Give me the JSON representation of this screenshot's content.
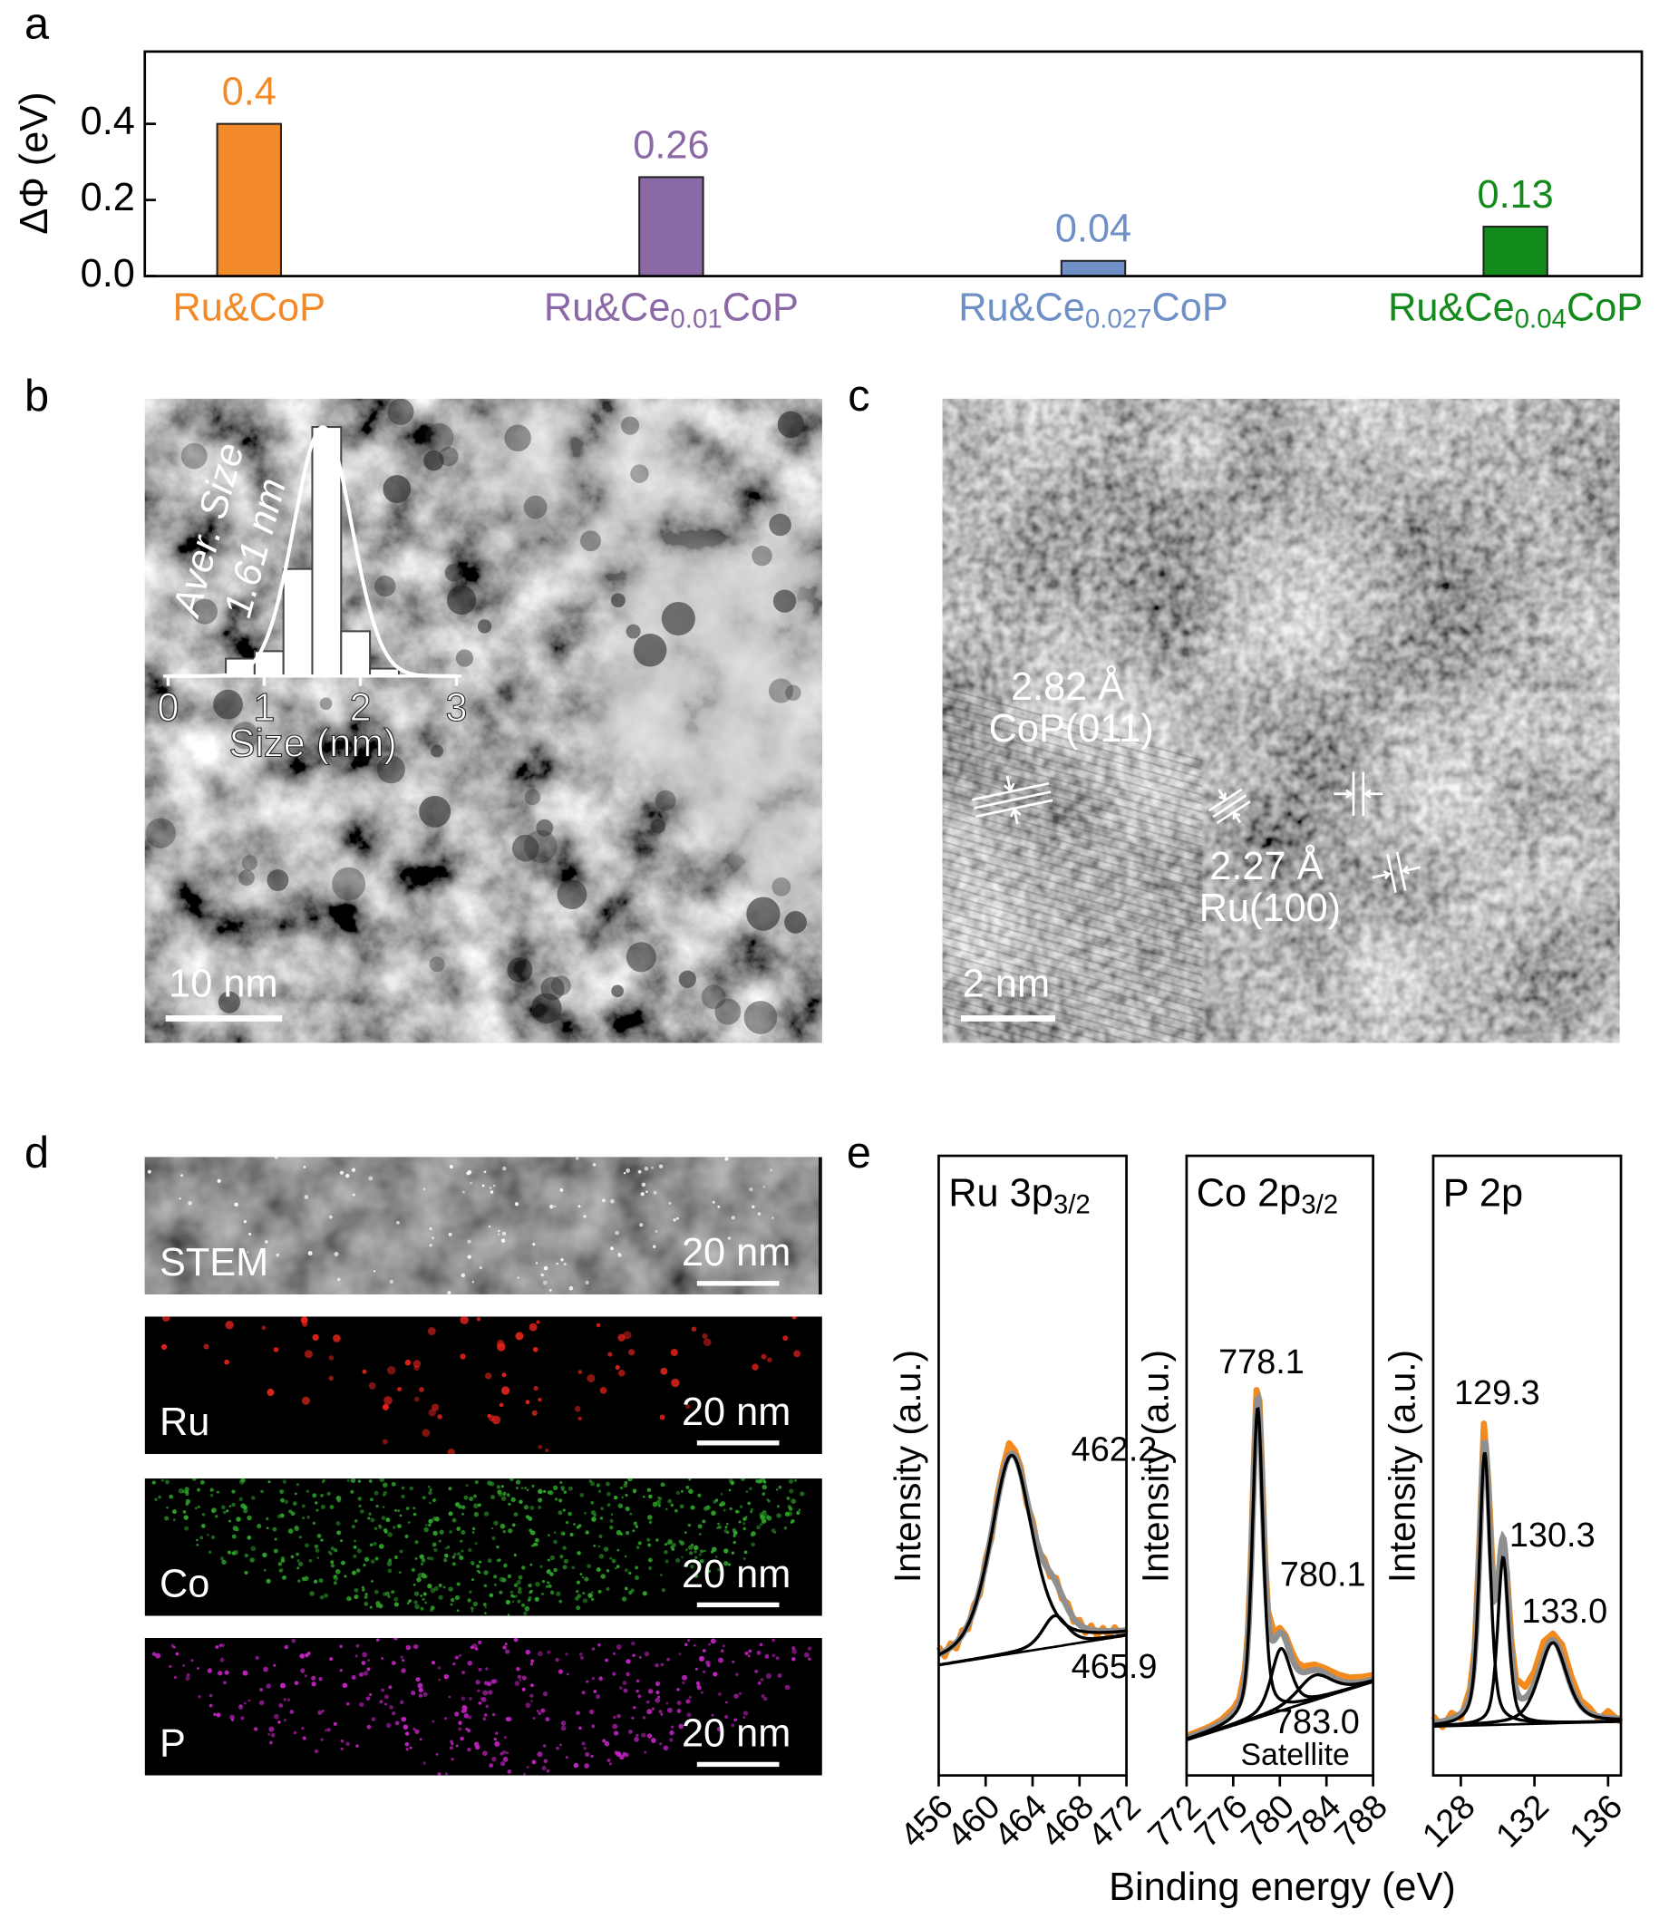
{
  "chart_data": [
    {
      "type": "bar",
      "ylabel": "ΔΦ (eV)",
      "categories": [
        [
          "Ru&CoP"
        ],
        [
          "Ru&Ce",
          "0.01",
          "CoP"
        ],
        [
          "Ru&Ce",
          "0.027",
          "CoP"
        ],
        [
          "Ru&Ce",
          "0.04",
          "CoP"
        ]
      ],
      "values": [
        0.4,
        0.26,
        0.04,
        0.13
      ],
      "colors": [
        "#f28a2a",
        "#8b69a6",
        "#6f90c6",
        "#138a1c"
      ],
      "ylim": [
        0,
        0.59
      ],
      "yticks": [
        {
          "value": 0,
          "label": "0.0"
        },
        {
          "value": 0.2,
          "label": "0.2"
        },
        {
          "value": 0.4,
          "label": "0.4"
        }
      ]
    },
    {
      "type": "histogram",
      "xlabel": "Size (nm)",
      "annotations": [
        "Aver. Size",
        "1.61 nm"
      ],
      "bins": [
        0.6,
        0.9,
        1.2,
        1.5,
        1.8,
        2.1,
        2.4
      ],
      "values": [
        7,
        10,
        43,
        100,
        18,
        3
      ],
      "xlim": [
        0,
        3
      ],
      "xticks": [
        0,
        1,
        2,
        3
      ],
      "ylim": [
        0,
        100
      ],
      "fit": {
        "mean": 1.61,
        "sigma": 0.3,
        "height": 100
      },
      "color": "#ffffff"
    },
    {
      "type": "xps",
      "title": [
        "Ru 3p",
        "3/2"
      ],
      "ylabel": "Intensity (a.u.)",
      "xlim": [
        456,
        472
      ],
      "xticks": [
        456,
        460,
        464,
        468,
        472
      ],
      "ylim": [
        0,
        100
      ],
      "x": [
        456,
        456.5,
        457,
        457.5,
        458,
        458.5,
        459,
        459.5,
        460,
        460.5,
        461,
        461.5,
        462,
        462.5,
        463,
        463.5,
        464,
        464.5,
        465,
        465.5,
        466,
        466.5,
        467,
        467.5,
        468,
        468.5,
        469,
        469.5,
        470,
        470.5,
        471,
        471.5,
        472
      ],
      "series": [
        {
          "color": "#f28a1e",
          "values": [
            20.8,
            19.2,
            21.3,
            20.5,
            23.4,
            23.6,
            27.5,
            29.2,
            35.0,
            38.3,
            45.2,
            49.9,
            53.6,
            52.4,
            49.7,
            43.9,
            41.2,
            36.1,
            35.0,
            32.1,
            31.9,
            28.5,
            27.8,
            24.8,
            25.1,
            23.0,
            24.2,
            22.6,
            23.8,
            22.5,
            23.9,
            22.7,
            23.6
          ]
        }
      ],
      "background": [
        17.8,
        22.6
      ],
      "peaks": [
        {
          "label": "462.2",
          "center": 462.2,
          "height": 32,
          "width": 4.2
        },
        {
          "label": "465.9",
          "center": 465.9,
          "height": 5,
          "width": 2.5
        }
      ],
      "envelope_color": "#8f8f8f",
      "component_color": "#000000"
    },
    {
      "type": "xps",
      "title": [
        "Co 2p",
        "3/2"
      ],
      "ylabel": "Intensity (a.u.)",
      "xlim": [
        772,
        788
      ],
      "xticks": [
        772,
        776,
        780,
        784,
        788
      ],
      "ylim": [
        0,
        100
      ],
      "x": [
        772,
        773,
        774,
        775,
        776,
        776.5,
        777,
        777.25,
        777.5,
        777.75,
        778,
        778.25,
        778.5,
        778.75,
        779,
        779.5,
        780,
        780.5,
        781,
        781.5,
        782,
        783,
        784,
        785,
        786,
        787,
        788
      ],
      "series": [
        {
          "color": "#f28a1e",
          "values": [
            6.4,
            7.1,
            7.9,
            9.0,
            10.8,
            12.3,
            17.0,
            23.0,
            34.1,
            49.0,
            62.2,
            60.5,
            47.6,
            34.5,
            26.4,
            23.0,
            23.8,
            22.6,
            20.1,
            18.2,
            17.6,
            17.9,
            17.2,
            16.3,
            15.8,
            15.9,
            16.2
          ]
        }
      ],
      "background": [
        5.7,
        15.1
      ],
      "peaks": [
        {
          "label": "778.1",
          "center": 778.1,
          "height": 50,
          "width": 1.1
        },
        {
          "label": "780.1",
          "center": 780.1,
          "height": 10,
          "width": 2.0
        },
        {
          "label": "783.0",
          "center": 783.0,
          "height": 4,
          "width": 3.5,
          "note": "Satellite"
        }
      ],
      "envelope_color": "#8f8f8f",
      "component_color": "#000000"
    },
    {
      "type": "xps",
      "title": [
        "P 2p"
      ],
      "ylabel": "Intensity (a.u.)",
      "xlim": [
        126.5,
        136.7
      ],
      "xticks": [
        128,
        132,
        136
      ],
      "ylim": [
        0,
        100
      ],
      "x": [
        126.5,
        127,
        127.5,
        128,
        128.5,
        128.75,
        129,
        129.25,
        129.5,
        129.75,
        130,
        130.25,
        130.5,
        130.75,
        131,
        131.5,
        132,
        132.5,
        133,
        133.5,
        134,
        134.5,
        135,
        135.5,
        136,
        136.7
      ],
      "series": [
        {
          "color": "#f28a1e",
          "values": [
            9.6,
            7.8,
            10.1,
            9.2,
            14.0,
            20.5,
            37.0,
            56.8,
            47.2,
            31.6,
            31.0,
            37.2,
            33.0,
            21.5,
            15.6,
            14.3,
            16.8,
            21.6,
            22.9,
            21.1,
            16.0,
            12.2,
            10.9,
            9.0,
            10.4,
            8.6
          ]
        }
      ],
      "background": [
        7.9,
        8.7
      ],
      "peaks": [
        {
          "label": "129.3",
          "center": 129.3,
          "height": 44,
          "width": 0.7
        },
        {
          "label": "130.3",
          "center": 130.3,
          "height": 27,
          "width": 0.7
        },
        {
          "label": "133.0",
          "center": 133.0,
          "height": 13,
          "width": 1.8
        }
      ],
      "envelope_color": "#8f8f8f",
      "component_color": "#000000"
    }
  ],
  "figure": {
    "panel_labels": [
      "a",
      "b",
      "c",
      "d",
      "e"
    ],
    "panel_b": {
      "scale_bar": "10 nm"
    },
    "panel_c": {
      "annotations": [
        "2.82 Å",
        "CoP(011)",
        "2.27 Å",
        "Ru(100)"
      ],
      "scale_bar": "2 nm"
    },
    "panel_d": {
      "maps": [
        {
          "label": "STEM",
          "scale_bar": "20 nm",
          "color": "#ffffff"
        },
        {
          "label": "Ru",
          "scale_bar": "20 nm",
          "color": "#e2221b"
        },
        {
          "label": "Co",
          "scale_bar": "20 nm",
          "color": "#2fa52a"
        },
        {
          "label": "P",
          "scale_bar": "20 nm",
          "color": "#c424c4"
        }
      ]
    },
    "panel_e": {
      "xlabel": "Binding energy (eV)"
    }
  }
}
